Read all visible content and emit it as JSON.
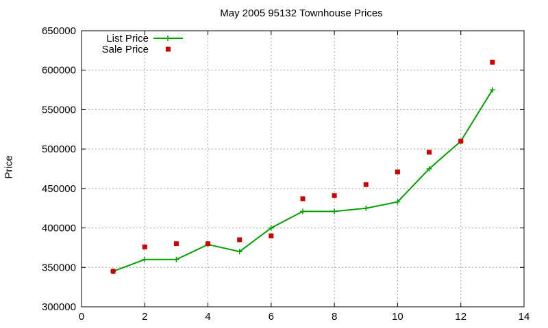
{
  "chart_data": {
    "type": "line",
    "title": "May 2005 95132 Townhouse Prices",
    "xlabel": "",
    "ylabel": "Price",
    "xlim": [
      0,
      14
    ],
    "ylim": [
      300000,
      650000
    ],
    "xticks": [
      0,
      2,
      4,
      6,
      8,
      10,
      12,
      14
    ],
    "yticks": [
      300000,
      350000,
      400000,
      450000,
      500000,
      550000,
      600000,
      650000
    ],
    "grid": true,
    "legend_position": "top-left",
    "series": [
      {
        "name": "List Price",
        "style": "line-with-plus-markers",
        "color": "#00a000",
        "x": [
          1,
          2,
          3,
          4,
          5,
          6,
          7,
          8,
          9,
          10,
          11,
          12,
          13
        ],
        "y": [
          345000,
          360000,
          360000,
          379000,
          370000,
          400000,
          421000,
          421000,
          425000,
          433000,
          475000,
          510000,
          575000
        ]
      },
      {
        "name": "Sale Price",
        "style": "square-markers",
        "color": "#cc0000",
        "x": [
          1,
          2,
          3,
          4,
          5,
          6,
          7,
          8,
          9,
          10,
          11,
          12,
          13
        ],
        "y": [
          345000,
          376000,
          380000,
          380000,
          385000,
          390000,
          437000,
          441000,
          455000,
          471000,
          496000,
          510000,
          610000
        ]
      }
    ]
  }
}
